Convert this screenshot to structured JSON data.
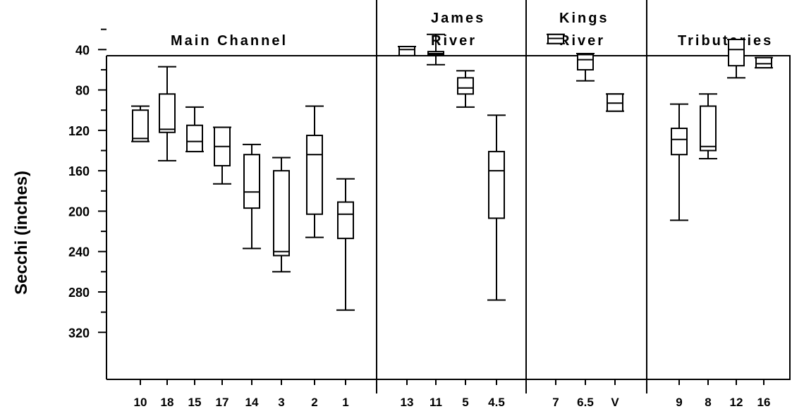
{
  "chart_data": {
    "type": "boxplot",
    "ylabel": "Secchi (inches)",
    "ylim": [
      0,
      320
    ],
    "y_inverted": true,
    "yticks": [
      "40",
      "80",
      "120",
      "160",
      "200",
      "240",
      "280",
      "320"
    ],
    "grid": false,
    "groups": [
      {
        "name_lines": [
          "Main Channel"
        ],
        "categories": [
          "10",
          "18",
          "15",
          "17",
          "14",
          "3",
          "2",
          "1"
        ],
        "boxes": [
          {
            "min": 96,
            "q1": 100,
            "median": 128,
            "q3": 131,
            "max": 131
          },
          {
            "min": 57,
            "q1": 84,
            "median": 119,
            "q3": 122,
            "max": 150
          },
          {
            "min": 97,
            "q1": 115,
            "median": 131,
            "q3": 141,
            "max": 141
          },
          {
            "min": 117,
            "q1": 117,
            "median": 136,
            "q3": 155,
            "max": 173
          },
          {
            "min": 134,
            "q1": 144,
            "median": 181,
            "q3": 197,
            "max": 237
          },
          {
            "min": 147,
            "q1": 160,
            "median": 240,
            "q3": 244,
            "max": 260
          },
          {
            "min": 96,
            "q1": 125,
            "median": 144,
            "q3": 203,
            "max": 226
          },
          {
            "min": 168,
            "q1": 191,
            "median": 203,
            "q3": 227,
            "max": 298
          }
        ]
      },
      {
        "name_lines": [
          "James",
          "River"
        ],
        "categories": [
          "13",
          "11",
          "5",
          "4.5"
        ],
        "boxes": [
          {
            "min": 37,
            "q1": 37,
            "median": 40,
            "q3": 46,
            "max": 46
          },
          {
            "min": 25,
            "q1": 42,
            "median": 44,
            "q3": 45,
            "max": 55
          },
          {
            "min": 61,
            "q1": 68,
            "median": 78,
            "q3": 84,
            "max": 97
          },
          {
            "min": 105,
            "q1": 141,
            "median": 160,
            "q3": 207,
            "max": 288
          }
        ]
      },
      {
        "name_lines": [
          "Kings",
          "River"
        ],
        "categories": [
          "7",
          "6.5",
          "V"
        ],
        "boxes": [
          {
            "min": 25,
            "q1": 25,
            "median": 29,
            "q3": 34,
            "max": 34
          },
          {
            "min": 44,
            "q1": 45,
            "median": 50,
            "q3": 60,
            "max": 71
          },
          {
            "min": 84,
            "q1": 84,
            "median": 93,
            "q3": 101,
            "max": 101
          }
        ]
      },
      {
        "name_lines": [
          "Tributaries"
        ],
        "categories": [
          "9",
          "8",
          "12",
          "16"
        ],
        "boxes": [
          {
            "min": 94,
            "q1": 118,
            "median": 129,
            "q3": 144,
            "max": 209
          },
          {
            "min": 84,
            "q1": 96,
            "median": 136,
            "q3": 140,
            "max": 148
          },
          {
            "min": 30,
            "q1": 30,
            "median": 40,
            "q3": 56,
            "max": 68
          },
          {
            "min": 48,
            "q1": 48,
            "median": 54,
            "q3": 58,
            "max": 58
          }
        ]
      }
    ]
  }
}
